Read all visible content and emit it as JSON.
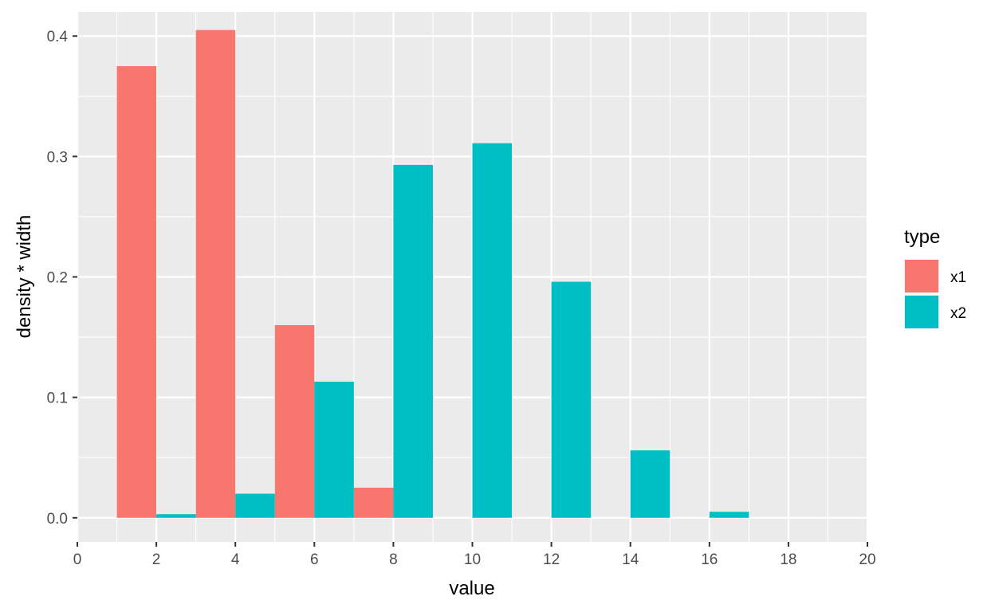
{
  "chart_data": {
    "type": "bar",
    "title": "",
    "xlabel": "value",
    "ylabel": "density * width",
    "xlim": [
      0,
      20
    ],
    "ylim": [
      -0.02,
      0.42
    ],
    "x_ticks": [
      "0",
      "2",
      "4",
      "6",
      "8",
      "10",
      "12",
      "14",
      "16",
      "18",
      "20"
    ],
    "y_ticks": [
      "0.0",
      "0.1",
      "0.2",
      "0.3",
      "0.4"
    ],
    "grid": true,
    "legend": {
      "title": "type",
      "position": "right",
      "entries": [
        "x1",
        "x2"
      ]
    },
    "series": [
      {
        "name": "x1",
        "color": "#F8766D",
        "bars": [
          {
            "x0": 1,
            "x1": 2,
            "value": 0.375
          },
          {
            "x0": 3,
            "x1": 4,
            "value": 0.405
          },
          {
            "x0": 5,
            "x1": 6,
            "value": 0.16
          },
          {
            "x0": 7,
            "x1": 8,
            "value": 0.025
          }
        ]
      },
      {
        "name": "x2",
        "color": "#00BFC4",
        "bars": [
          {
            "x0": 2,
            "x1": 3,
            "value": 0.003
          },
          {
            "x0": 4,
            "x1": 5,
            "value": 0.02
          },
          {
            "x0": 6,
            "x1": 7,
            "value": 0.113
          },
          {
            "x0": 8,
            "x1": 9,
            "value": 0.293
          },
          {
            "x0": 10,
            "x1": 11,
            "value": 0.311
          },
          {
            "x0": 12,
            "x1": 13,
            "value": 0.196
          },
          {
            "x0": 14,
            "x1": 15,
            "value": 0.056
          },
          {
            "x0": 16,
            "x1": 17,
            "value": 0.005
          }
        ]
      }
    ]
  }
}
